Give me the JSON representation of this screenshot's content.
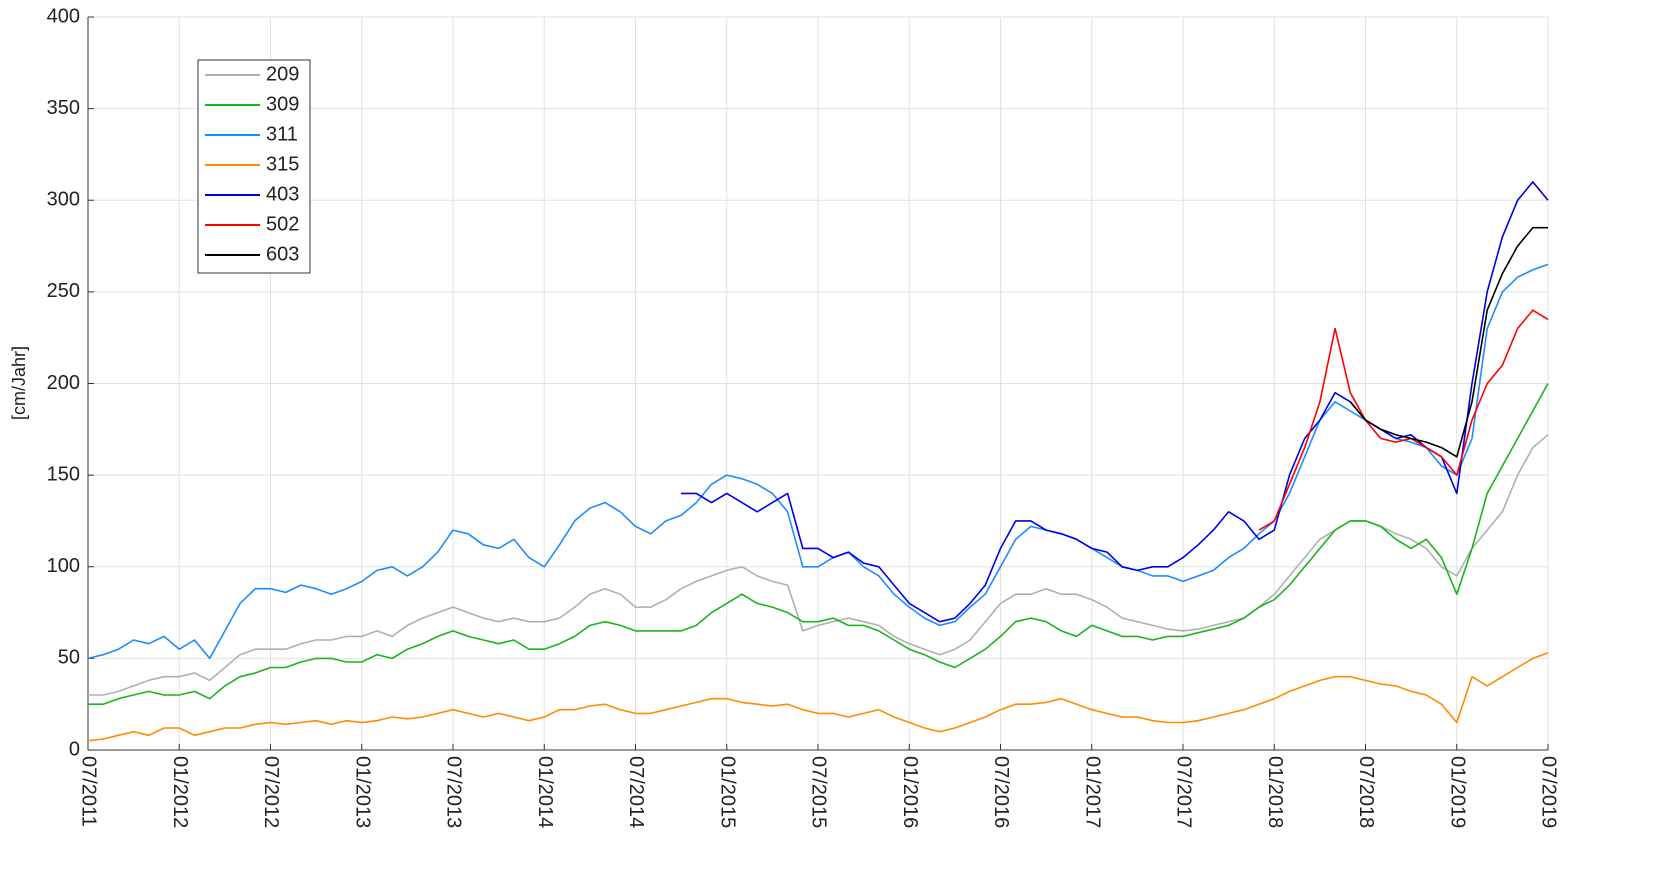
{
  "chart_data": {
    "type": "line",
    "y_label": "[cm/Jahr]",
    "x": [
      "2011-07",
      "2011-08",
      "2011-09",
      "2011-10",
      "2011-11",
      "2011-12",
      "2012-01",
      "2012-02",
      "2012-03",
      "2012-04",
      "2012-05",
      "2012-06",
      "2012-07",
      "2012-08",
      "2012-09",
      "2012-10",
      "2012-11",
      "2012-12",
      "2013-01",
      "2013-02",
      "2013-03",
      "2013-04",
      "2013-05",
      "2013-06",
      "2013-07",
      "2013-08",
      "2013-09",
      "2013-10",
      "2013-11",
      "2013-12",
      "2014-01",
      "2014-02",
      "2014-03",
      "2014-04",
      "2014-05",
      "2014-06",
      "2014-07",
      "2014-08",
      "2014-09",
      "2014-10",
      "2014-11",
      "2014-12",
      "2015-01",
      "2015-02",
      "2015-03",
      "2015-04",
      "2015-05",
      "2015-06",
      "2015-07",
      "2015-08",
      "2015-09",
      "2015-10",
      "2015-11",
      "2015-12",
      "2016-01",
      "2016-02",
      "2016-03",
      "2016-04",
      "2016-05",
      "2016-06",
      "2016-07",
      "2016-08",
      "2016-09",
      "2016-10",
      "2016-11",
      "2016-12",
      "2017-01",
      "2017-02",
      "2017-03",
      "2017-04",
      "2017-05",
      "2017-06",
      "2017-07",
      "2017-08",
      "2017-09",
      "2017-10",
      "2017-11",
      "2017-12",
      "2018-01",
      "2018-02",
      "2018-03",
      "2018-04",
      "2018-05",
      "2018-06",
      "2018-07",
      "2018-08",
      "2018-09",
      "2018-10",
      "2018-11",
      "2018-12",
      "2019-01",
      "2019-02",
      "2019-03",
      "2019-04",
      "2019-05",
      "2019-06",
      "2019-07"
    ],
    "xlim": [
      "2011-07",
      "2019-07"
    ],
    "xticks": [
      {
        "value": "2011-07",
        "label": "07/2011"
      },
      {
        "value": "2012-01",
        "label": "01/2012"
      },
      {
        "value": "2012-07",
        "label": "07/2012"
      },
      {
        "value": "2013-01",
        "label": "01/2013"
      },
      {
        "value": "2013-07",
        "label": "07/2013"
      },
      {
        "value": "2014-01",
        "label": "01/2014"
      },
      {
        "value": "2014-07",
        "label": "07/2014"
      },
      {
        "value": "2015-01",
        "label": "01/2015"
      },
      {
        "value": "2015-07",
        "label": "07/2015"
      },
      {
        "value": "2016-01",
        "label": "01/2016"
      },
      {
        "value": "2016-07",
        "label": "07/2016"
      },
      {
        "value": "2017-01",
        "label": "01/2017"
      },
      {
        "value": "2017-07",
        "label": "07/2017"
      },
      {
        "value": "2018-01",
        "label": "01/2018"
      },
      {
        "value": "2018-07",
        "label": "07/2018"
      },
      {
        "value": "2019-01",
        "label": "01/2019"
      },
      {
        "value": "2019-07",
        "label": "07/2019"
      }
    ],
    "ylim": [
      0,
      400
    ],
    "yticks": [
      0,
      50,
      100,
      150,
      200,
      250,
      300,
      350,
      400
    ],
    "grid": true,
    "legend": "upper left",
    "series": [
      {
        "name": "209",
        "color": "#b0b0b0",
        "values": [
          30,
          30,
          32,
          35,
          38,
          40,
          40,
          42,
          38,
          45,
          52,
          55,
          55,
          55,
          58,
          60,
          60,
          62,
          62,
          65,
          62,
          68,
          72,
          75,
          78,
          75,
          72,
          70,
          72,
          70,
          70,
          72,
          78,
          85,
          88,
          85,
          78,
          78,
          82,
          88,
          92,
          95,
          98,
          100,
          95,
          92,
          90,
          65,
          68,
          70,
          72,
          70,
          68,
          62,
          58,
          55,
          52,
          55,
          60,
          70,
          80,
          85,
          85,
          88,
          85,
          85,
          82,
          78,
          72,
          70,
          68,
          66,
          65,
          66,
          68,
          70,
          72,
          78,
          85,
          95,
          105,
          115,
          120,
          125,
          125,
          122,
          118,
          115,
          110,
          100,
          95,
          110,
          120,
          130,
          150,
          165,
          172
        ]
      },
      {
        "name": "309",
        "color": "#1cb41c",
        "values": [
          25,
          25,
          28,
          30,
          32,
          30,
          30,
          32,
          28,
          35,
          40,
          42,
          45,
          45,
          48,
          50,
          50,
          48,
          48,
          52,
          50,
          55,
          58,
          62,
          65,
          62,
          60,
          58,
          60,
          55,
          55,
          58,
          62,
          68,
          70,
          68,
          65,
          65,
          65,
          65,
          68,
          75,
          80,
          85,
          80,
          78,
          75,
          70,
          70,
          72,
          68,
          68,
          65,
          60,
          55,
          52,
          48,
          45,
          50,
          55,
          62,
          70,
          72,
          70,
          65,
          62,
          68,
          65,
          62,
          62,
          60,
          62,
          62,
          64,
          66,
          68,
          72,
          78,
          82,
          90,
          100,
          110,
          120,
          125,
          125,
          122,
          115,
          110,
          115,
          105,
          85,
          110,
          140,
          155,
          170,
          185,
          200
        ]
      },
      {
        "name": "311",
        "color": "#1e8cff",
        "values": [
          50,
          52,
          55,
          60,
          58,
          62,
          55,
          60,
          50,
          65,
          80,
          88,
          88,
          86,
          90,
          88,
          85,
          88,
          92,
          98,
          100,
          95,
          100,
          108,
          120,
          118,
          112,
          110,
          115,
          105,
          100,
          112,
          125,
          132,
          135,
          130,
          122,
          118,
          125,
          128,
          135,
          145,
          150,
          148,
          145,
          140,
          130,
          100,
          100,
          105,
          108,
          100,
          95,
          85,
          78,
          72,
          68,
          70,
          78,
          85,
          100,
          115,
          122,
          120,
          118,
          115,
          110,
          105,
          100,
          98,
          95,
          95,
          92,
          95,
          98,
          105,
          110,
          118,
          125,
          140,
          160,
          180,
          190,
          185,
          180,
          175,
          170,
          168,
          165,
          155,
          150,
          170,
          230,
          250,
          258,
          262,
          265
        ]
      },
      {
        "name": "315",
        "color": "#ff8c00",
        "values": [
          5,
          6,
          8,
          10,
          8,
          12,
          12,
          8,
          10,
          12,
          12,
          14,
          15,
          14,
          15,
          16,
          14,
          16,
          15,
          16,
          18,
          17,
          18,
          20,
          22,
          20,
          18,
          20,
          18,
          16,
          18,
          22,
          22,
          24,
          25,
          22,
          20,
          20,
          22,
          24,
          26,
          28,
          28,
          26,
          25,
          24,
          25,
          22,
          20,
          20,
          18,
          20,
          22,
          18,
          15,
          12,
          10,
          12,
          15,
          18,
          22,
          25,
          25,
          26,
          28,
          25,
          22,
          20,
          18,
          18,
          16,
          15,
          15,
          16,
          18,
          20,
          22,
          25,
          28,
          32,
          35,
          38,
          40,
          40,
          38,
          36,
          35,
          32,
          30,
          25,
          15,
          40,
          35,
          40,
          45,
          50,
          53
        ]
      },
      {
        "name": "403",
        "color": "#0000e6",
        "values": [
          null,
          null,
          null,
          null,
          null,
          null,
          null,
          null,
          null,
          null,
          null,
          null,
          null,
          null,
          null,
          null,
          null,
          null,
          null,
          null,
          null,
          null,
          null,
          null,
          null,
          null,
          null,
          null,
          null,
          null,
          null,
          null,
          null,
          null,
          null,
          null,
          null,
          null,
          null,
          140,
          140,
          135,
          140,
          135,
          130,
          135,
          140,
          110,
          110,
          105,
          108,
          102,
          100,
          90,
          80,
          75,
          70,
          72,
          80,
          90,
          110,
          125,
          125,
          120,
          118,
          115,
          110,
          108,
          100,
          98,
          100,
          100,
          105,
          112,
          120,
          130,
          125,
          115,
          120,
          150,
          170,
          180,
          195,
          190,
          180,
          175,
          170,
          172,
          165,
          160,
          140,
          200,
          250,
          280,
          300,
          310,
          300
        ]
      },
      {
        "name": "502",
        "color": "#ff0000",
        "values": [
          null,
          null,
          null,
          null,
          null,
          null,
          null,
          null,
          null,
          null,
          null,
          null,
          null,
          null,
          null,
          null,
          null,
          null,
          null,
          null,
          null,
          null,
          null,
          null,
          null,
          null,
          null,
          null,
          null,
          null,
          null,
          null,
          null,
          null,
          null,
          null,
          null,
          null,
          null,
          null,
          null,
          null,
          null,
          null,
          null,
          null,
          null,
          null,
          null,
          null,
          null,
          null,
          null,
          null,
          null,
          null,
          null,
          null,
          null,
          null,
          null,
          null,
          null,
          null,
          null,
          null,
          null,
          null,
          null,
          null,
          null,
          null,
          null,
          null,
          null,
          null,
          null,
          120,
          125,
          145,
          165,
          190,
          230,
          195,
          180,
          170,
          168,
          170,
          165,
          160,
          150,
          180,
          200,
          210,
          230,
          240,
          235
        ]
      },
      {
        "name": "603",
        "color": "#000000",
        "values": [
          null,
          null,
          null,
          null,
          null,
          null,
          null,
          null,
          null,
          null,
          null,
          null,
          null,
          null,
          null,
          null,
          null,
          null,
          null,
          null,
          null,
          null,
          null,
          null,
          null,
          null,
          null,
          null,
          null,
          null,
          null,
          null,
          null,
          null,
          null,
          null,
          null,
          null,
          null,
          null,
          null,
          null,
          null,
          null,
          null,
          null,
          null,
          null,
          null,
          null,
          null,
          null,
          null,
          null,
          null,
          null,
          null,
          null,
          null,
          null,
          null,
          null,
          null,
          null,
          null,
          null,
          null,
          null,
          null,
          null,
          null,
          null,
          null,
          null,
          null,
          null,
          null,
          null,
          null,
          null,
          null,
          null,
          null,
          190,
          180,
          175,
          172,
          170,
          168,
          165,
          160,
          190,
          240,
          260,
          275,
          285,
          285
        ]
      }
    ]
  }
}
